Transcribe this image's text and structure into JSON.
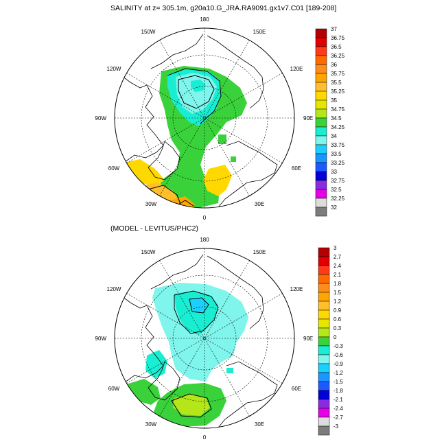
{
  "panels": [
    {
      "id": "top",
      "title": "SALINITY at z= 305.1m, g20a10.G_JRA.RA9091.gx1v7.C01 [189-208]",
      "lon_labels": [
        "180",
        "150E",
        "120E",
        "90E",
        "60E",
        "30E",
        "0",
        "30W",
        "60W",
        "90W",
        "120W",
        "150W"
      ],
      "colorbar": {
        "labels": [
          "37",
          "36.75",
          "36.5",
          "36.25",
          "36",
          "35.75",
          "35.5",
          "35.25",
          "35",
          "34.75",
          "34.5",
          "34.25",
          "34",
          "33.75",
          "33.5",
          "33.25",
          "33",
          "32.75",
          "32.5",
          "32.25",
          "32"
        ],
        "colors": [
          "#b30000",
          "#e00000",
          "#ff3a1a",
          "#ff6a00",
          "#ff8c1a",
          "#ffa500",
          "#ffbf2a",
          "#ffd800",
          "#e6e600",
          "#b4e61a",
          "#3ad23a",
          "#1aeed2",
          "#7ff5ec",
          "#1ad0ff",
          "#1a96ff",
          "#1a5aff",
          "#0000d9",
          "#8a2be2",
          "#e600e6",
          "#dcdcdc",
          "#7c7c7c"
        ]
      }
    },
    {
      "id": "bottom",
      "title": "(MODEL - LEVITUS/PHC2)",
      "lon_labels": [
        "180",
        "150E",
        "120E",
        "90E",
        "60E",
        "30E",
        "0",
        "30W",
        "60W",
        "90W",
        "120W",
        "150W"
      ],
      "colorbar": {
        "labels": [
          "3",
          "2.7",
          "2.4",
          "2.1",
          "1.8",
          "1.5",
          "1.2",
          "0.9",
          "0.6",
          "0.3",
          "0",
          "-0.3",
          "-0.6",
          "-0.9",
          "-1.2",
          "-1.5",
          "-1.8",
          "-2.1",
          "-2.4",
          "-2.7",
          "-3"
        ],
        "colors": [
          "#b30000",
          "#e00000",
          "#ff3a1a",
          "#ff6a00",
          "#ff8c1a",
          "#ffa500",
          "#ffbf2a",
          "#ffd800",
          "#e6e600",
          "#b4e61a",
          "#3ad23a",
          "#1aeed2",
          "#7ff5ec",
          "#1ad0ff",
          "#1a96ff",
          "#1a5aff",
          "#0000d9",
          "#8a2be2",
          "#e600e6",
          "#dcdcdc",
          "#7c7c7c"
        ]
      }
    }
  ]
}
